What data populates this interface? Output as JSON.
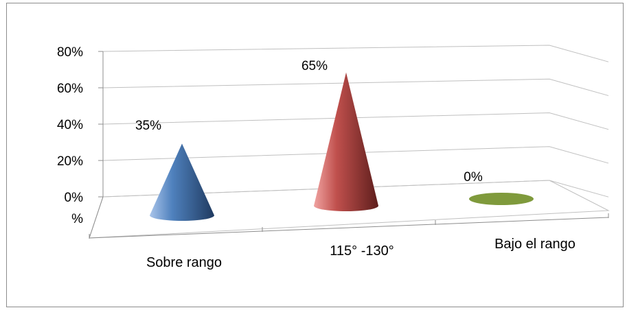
{
  "chart_data": {
    "type": "bar",
    "subtype": "3d-cone",
    "title": "",
    "xlabel": "",
    "ylabel": "",
    "ylim": [
      0,
      80
    ],
    "y_ticks": [
      "80%",
      "60%",
      "40%",
      "20%",
      "0%"
    ],
    "y_tick_values": [
      80,
      60,
      40,
      20,
      0
    ],
    "zero_tick_label": [
      "0%",
      "%"
    ],
    "categories": [
      "Sobre rango",
      "115° -130°",
      "Bajo el rango"
    ],
    "values": [
      35,
      65,
      0
    ],
    "data_labels": [
      "35%",
      "65%",
      "0%"
    ],
    "colors": [
      "#4f81bd",
      "#c0504d",
      "#7f9a3c"
    ],
    "grid": true,
    "legend": "none"
  }
}
